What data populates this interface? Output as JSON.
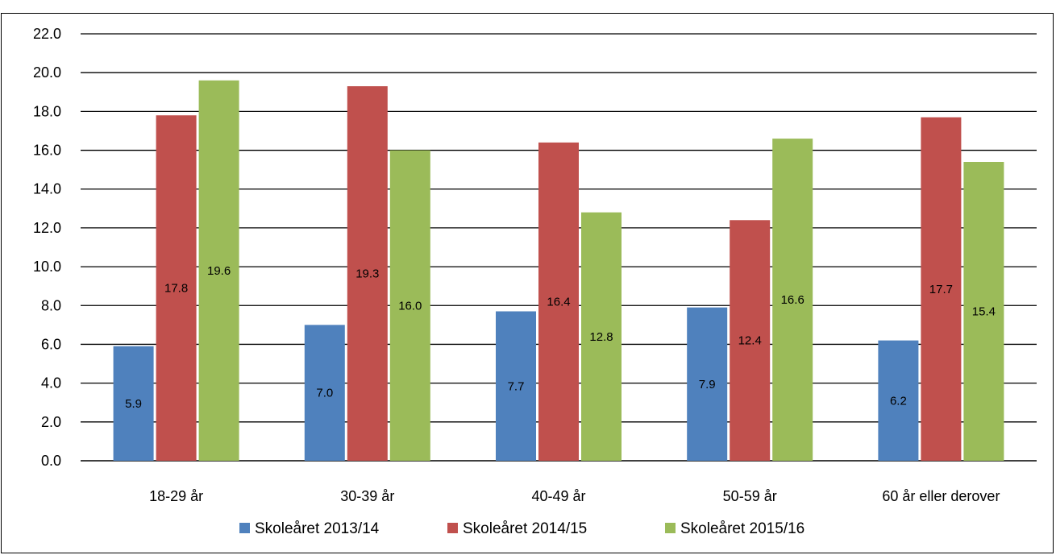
{
  "title": "",
  "chart_data": {
    "type": "bar",
    "categories": [
      "18-29 år",
      "30-39 år",
      "40-49 år",
      "50-59 år",
      "60 år eller derover"
    ],
    "series": [
      {
        "name": "Skoleåret 2013/14",
        "values": [
          5.9,
          7.0,
          7.7,
          7.9,
          6.2
        ],
        "color": "#4F81BD"
      },
      {
        "name": "Skoleåret 2014/15",
        "values": [
          17.8,
          19.3,
          16.4,
          12.4,
          17.7
        ],
        "color": "#C0504D"
      },
      {
        "name": "Skoleåret 2015/16",
        "values": [
          19.6,
          16.0,
          12.8,
          16.6,
          15.4
        ],
        "color": "#9BBB59"
      }
    ],
    "ylim": [
      0,
      22
    ],
    "ytick_step": 2,
    "ytick_labels": [
      "0.0",
      "2.0",
      "4.0",
      "6.0",
      "8.0",
      "10.0",
      "12.0",
      "14.0",
      "16.0",
      "18.0",
      "20.0",
      "22.0"
    ],
    "grid": true,
    "legend_position": "bottom",
    "xlabel": "",
    "ylabel": ""
  }
}
